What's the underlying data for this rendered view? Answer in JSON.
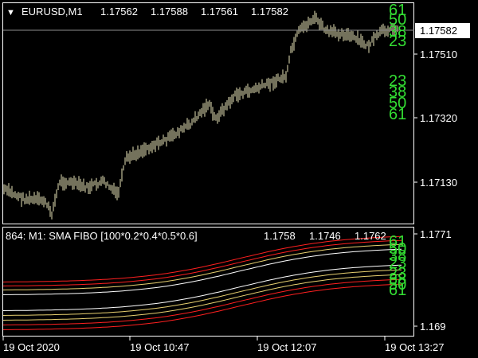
{
  "main_chart": {
    "symbol_header": "EURUSD,M1",
    "ohlc": [
      "1.17562",
      "1.17588",
      "1.17561",
      "1.17582"
    ],
    "current_price": "1.17582",
    "price_scale": [
      "1.17510",
      "1.17320",
      "1.17130"
    ],
    "fib_upper": [
      "61",
      "50",
      "38",
      "23"
    ],
    "fib_lower": [
      "23",
      "38",
      "50",
      "61"
    ],
    "candle_color": "#e8e4b8",
    "price_line_color": "#8c8c8c"
  },
  "indicator_panel": {
    "title": "864: M1: SMA FIBO [100*0.2*0.4*0.5*0.6]",
    "values": [
      "1.1758",
      "1.1746",
      "1.1762"
    ],
    "scale": [
      "1.1771",
      "1.169"
    ],
    "fib_upper": [
      "61",
      "50",
      "38",
      "23"
    ],
    "fib_lower": [
      "23",
      "38",
      "50",
      "61"
    ],
    "band_colors": [
      "#ff2020",
      "#e8d070",
      "#ffffff"
    ]
  },
  "time_axis": [
    "19 Oct 2020",
    "19 Oct 10:47",
    "19 Oct 12:07",
    "19 Oct 13:27"
  ]
}
